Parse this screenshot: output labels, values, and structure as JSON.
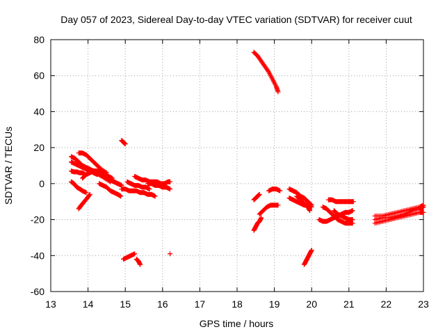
{
  "chart_data": {
    "type": "scatter",
    "title": "Day 057 of 2023, Sidereal Day-to-day VTEC variation (SDTVAR) for receiver cuut",
    "xlabel": "GPS time / hours",
    "ylabel": "SDTVAR / TECUs",
    "xlim": [
      13,
      23
    ],
    "ylim": [
      -60,
      80
    ],
    "xticks": [
      13,
      14,
      15,
      16,
      17,
      18,
      19,
      20,
      21,
      22,
      23
    ],
    "yticks": [
      -60,
      -40,
      -20,
      0,
      20,
      40,
      60,
      80
    ],
    "grid": true,
    "marker": "plus",
    "series_color": "#ff0000",
    "segments": [
      {
        "x": [
          13.55,
          13.62,
          13.7,
          13.78,
          13.85,
          13.95
        ],
        "y": [
          1,
          0,
          -2,
          -3,
          -4,
          -5
        ]
      },
      {
        "x": [
          13.55,
          13.62,
          13.7,
          13.78,
          13.85,
          13.92
        ],
        "y": [
          7,
          6.5,
          6.5,
          6,
          6,
          5
        ]
      },
      {
        "x": [
          13.55,
          13.65,
          13.75,
          13.85,
          13.95,
          14.05,
          14.15,
          14.25
        ],
        "y": [
          12,
          11,
          10,
          9,
          8,
          7,
          6,
          5
        ]
      },
      {
        "x": [
          13.55,
          13.65,
          13.75,
          13.85,
          13.95,
          14.05,
          14.15,
          14.3,
          14.45,
          14.6
        ],
        "y": [
          15,
          14,
          12,
          10,
          9,
          8,
          7,
          5,
          3,
          1
        ]
      },
      {
        "x": [
          13.75,
          13.85,
          13.95,
          14.05,
          14.15,
          14.25,
          14.35,
          14.5
        ],
        "y": [
          17,
          17,
          16,
          14,
          12,
          10,
          8,
          6
        ]
      },
      {
        "x": [
          13.75,
          13.82,
          13.9,
          13.98,
          14.05
        ],
        "y": [
          -14,
          -12,
          -10,
          -8,
          -6
        ]
      },
      {
        "x": [
          13.85,
          13.95,
          14.05,
          14.15,
          14.25,
          14.35,
          14.45,
          14.55,
          14.65
        ],
        "y": [
          3,
          5,
          6,
          7,
          7,
          6,
          5,
          4,
          3
        ]
      },
      {
        "x": [
          14.0,
          14.1,
          14.2,
          14.3,
          14.4,
          14.5,
          14.6,
          14.7,
          14.8,
          14.9
        ],
        "y": [
          8,
          7,
          6,
          5,
          4,
          3,
          2,
          1,
          0,
          -1
        ]
      },
      {
        "x": [
          14.3,
          14.4,
          14.5,
          14.6,
          14.7,
          14.8,
          14.88
        ],
        "y": [
          0,
          -1,
          -2,
          -4,
          -5,
          -6,
          -7
        ]
      },
      {
        "x": [
          14.5,
          14.6,
          14.7,
          14.8,
          14.9
        ],
        "y": [
          3,
          2,
          1,
          0,
          -1
        ]
      },
      {
        "x": [
          14.9,
          14.95,
          15.0
        ],
        "y": [
          24,
          23,
          22
        ]
      },
      {
        "x": [
          14.9,
          15.0,
          15.1,
          15.2,
          15.3,
          15.4,
          15.5,
          15.6,
          15.7,
          15.8
        ],
        "y": [
          -3,
          -3,
          -4,
          -4,
          -4,
          -5,
          -5,
          -6,
          -6,
          -7
        ]
      },
      {
        "x": [
          15.05,
          15.15,
          15.25,
          15.35,
          15.45,
          15.55,
          15.65
        ],
        "y": [
          1,
          0,
          -1,
          -1,
          -2,
          -2,
          -3
        ]
      },
      {
        "x": [
          15.25,
          15.35,
          15.45,
          15.55,
          15.65,
          15.75,
          15.85,
          15.95,
          16.05,
          16.15,
          16.2
        ],
        "y": [
          4,
          3,
          2,
          2,
          1,
          1,
          1,
          0,
          0,
          1,
          1
        ]
      },
      {
        "x": [
          15.6,
          15.7,
          15.8,
          15.9,
          16.0,
          16.1,
          16.2
        ],
        "y": [
          0,
          0,
          -1,
          -1,
          -2,
          -2,
          -3
        ]
      },
      {
        "x": [
          14.95,
          15.05,
          15.15,
          15.25
        ],
        "y": [
          -42,
          -41,
          -40,
          -39
        ]
      },
      {
        "x": [
          15.3,
          15.35,
          15.4
        ],
        "y": [
          -42,
          -43,
          -45
        ]
      },
      {
        "x": [
          16.2
        ],
        "y": [
          -39
        ]
      },
      {
        "x": [
          18.45,
          18.55,
          18.65,
          18.75,
          18.85,
          18.95,
          19.05,
          19.1
        ],
        "y": [
          73,
          71,
          68,
          65,
          62,
          58,
          54,
          51
        ]
      },
      {
        "x": [
          18.45,
          18.5,
          18.55,
          18.6,
          18.65
        ],
        "y": [
          -26,
          -24,
          -22,
          -21,
          -19
        ]
      },
      {
        "x": [
          18.45,
          18.5,
          18.55,
          18.6
        ],
        "y": [
          -9,
          -8,
          -7,
          -6
        ]
      },
      {
        "x": [
          18.6,
          18.7,
          18.8,
          18.9,
          19.0,
          19.1
        ],
        "y": [
          -17,
          -15,
          -13,
          -12,
          -12,
          -12
        ]
      },
      {
        "x": [
          18.85,
          18.95,
          19.05,
          19.15
        ],
        "y": [
          -4,
          -3,
          -3,
          -4
        ]
      },
      {
        "x": [
          19.4,
          19.5,
          19.6,
          19.7,
          19.8,
          19.9,
          20.0
        ],
        "y": [
          -3,
          -4,
          -5,
          -7,
          -8,
          -10,
          -12
        ]
      },
      {
        "x": [
          19.4,
          19.5,
          19.6,
          19.7,
          19.8,
          19.9,
          20.0
        ],
        "y": [
          -8,
          -9,
          -10,
          -11,
          -12,
          -12,
          -13
        ]
      },
      {
        "x": [
          19.6,
          19.7,
          19.8,
          19.9,
          19.95
        ],
        "y": [
          -7,
          -9,
          -11,
          -13,
          -15
        ]
      },
      {
        "x": [
          19.8,
          19.85,
          19.9,
          19.95,
          20.0
        ],
        "y": [
          -45,
          -43,
          -41,
          -39,
          -37
        ]
      },
      {
        "x": [
          20.2,
          20.3,
          20.4,
          20.5,
          20.6,
          20.7,
          20.8,
          20.9,
          21.0,
          21.1
        ],
        "y": [
          -20,
          -21,
          -21,
          -20,
          -19,
          -18,
          -17,
          -16,
          -16,
          -15
        ]
      },
      {
        "x": [
          20.3,
          20.4,
          20.5,
          20.6,
          20.7,
          20.8,
          20.9,
          21.0,
          21.1
        ],
        "y": [
          -13,
          -14,
          -16,
          -18,
          -20,
          -21,
          -22,
          -22,
          -22
        ]
      },
      {
        "x": [
          20.45,
          20.55,
          20.65,
          20.75,
          20.85,
          20.95,
          21.05,
          21.12
        ],
        "y": [
          -9,
          -9,
          -10,
          -10,
          -10,
          -10,
          -10,
          -10
        ]
      },
      {
        "x": [
          20.6,
          20.7,
          20.8,
          20.9,
          21.0,
          21.1
        ],
        "y": [
          -15,
          -17,
          -18,
          -19,
          -20,
          -20
        ]
      },
      {
        "x": [
          21.7,
          21.9,
          22.1,
          22.3,
          22.5,
          22.7,
          22.9,
          23.0
        ],
        "y": [
          -22,
          -21,
          -20,
          -19,
          -18,
          -17,
          -16,
          -16
        ]
      },
      {
        "x": [
          21.7,
          21.9,
          22.1,
          22.3,
          22.5,
          22.7,
          22.9,
          23.0
        ],
        "y": [
          -18,
          -18,
          -17,
          -16,
          -15,
          -14,
          -13,
          -12
        ]
      },
      {
        "x": [
          21.7,
          21.9,
          22.1,
          22.3,
          22.5,
          22.7,
          22.9,
          23.0
        ],
        "y": [
          -20,
          -19,
          -19,
          -18,
          -17,
          -15,
          -14,
          -13
        ]
      }
    ]
  }
}
